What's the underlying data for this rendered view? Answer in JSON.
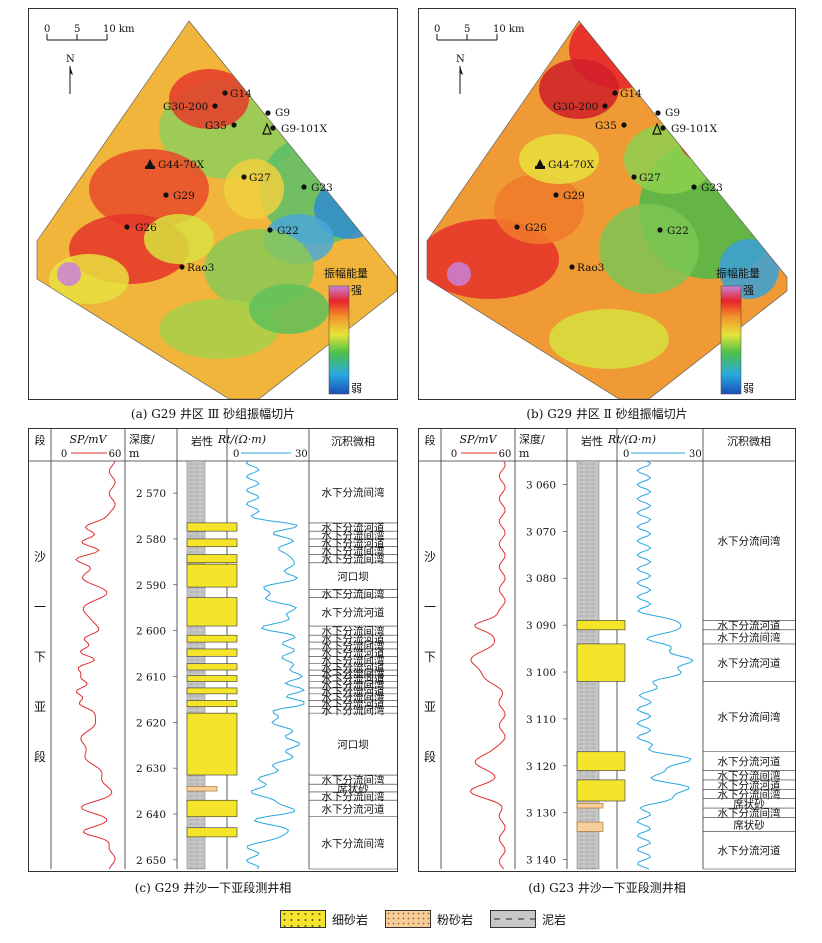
{
  "maps": [
    {
      "caption": "(a) G29 井区 Ⅲ 砂组振幅切片",
      "scale": {
        "zero": "0",
        "five": "5",
        "ten": "10 km"
      },
      "north": "N",
      "legend": {
        "title": "振幅能量",
        "strong": "强",
        "weak": "弱"
      },
      "wells": [
        "G14",
        "G30-200",
        "G9",
        "G35",
        "G9-101X",
        "G44-70X",
        "G27",
        "G23",
        "G29",
        "G26",
        "G22",
        "Rao3"
      ]
    },
    {
      "caption": "(b) G29 井区 Ⅱ 砂组振幅切片",
      "scale": {
        "zero": "0",
        "five": "5",
        "ten": "10 km"
      },
      "north": "N",
      "legend": {
        "title": "振幅能量",
        "strong": "强",
        "weak": "弱"
      },
      "wells": [
        "G14",
        "G30-200",
        "G9",
        "G35",
        "G9-101X",
        "G44-70X",
        "G27",
        "G23",
        "G29",
        "G26",
        "G22",
        "Rao3"
      ]
    }
  ],
  "logs": [
    {
      "caption": "(c) G29 井沙一下亚段测井相",
      "headers": {
        "seg": "段",
        "sp": "SP/mV",
        "sp_min": "0",
        "sp_max": "60",
        "depth": "深度/",
        "depth_unit": "m",
        "lith": "岩性",
        "rt": "Rt/(Ω·m)",
        "rt_min": "0",
        "rt_max": "30",
        "facies": "沉积微相"
      },
      "segment_chars": [
        "沙",
        "一",
        "下",
        "亚",
        "段"
      ],
      "depth_range": [
        2563,
        2652
      ],
      "depth_ticks": [
        "2 570",
        "2 580",
        "2 590",
        "2 600",
        "2 610",
        "2 620",
        "2 630",
        "2 640",
        "2 650"
      ],
      "facies": [
        {
          "label": "水下分流间湾",
          "top": 2563,
          "bottom": 2576.5
        },
        {
          "label": "水下分流河道",
          "top": 2576.5,
          "bottom": 2578.3
        },
        {
          "label": "水下分流间湾",
          "top": 2578.3,
          "bottom": 2580
        },
        {
          "label": "水下分流河道",
          "top": 2580,
          "bottom": 2581.7
        },
        {
          "label": "水下分流间湾",
          "top": 2581.7,
          "bottom": 2583.4
        },
        {
          "label": "水下分流间湾",
          "top": 2583.4,
          "bottom": 2585.2
        },
        {
          "label": "河口坝",
          "top": 2585.2,
          "bottom": 2591
        },
        {
          "label": "水下分流间湾",
          "top": 2591,
          "bottom": 2592.8
        },
        {
          "label": "水下分流河道",
          "top": 2592.8,
          "bottom": 2599
        },
        {
          "label": "水下分流间湾",
          "top": 2599,
          "bottom": 2601
        },
        {
          "label": "水下分流河道",
          "top": 2601,
          "bottom": 2602.5
        },
        {
          "label": "水下分流间湾",
          "top": 2602.5,
          "bottom": 2604
        },
        {
          "label": "水下分流河道",
          "top": 2604,
          "bottom": 2605.6
        },
        {
          "label": "水下分流间湾",
          "top": 2605.6,
          "bottom": 2607.2
        },
        {
          "label": "水下分流河道",
          "top": 2607.2,
          "bottom": 2608.6
        },
        {
          "label": "水下分流间湾",
          "top": 2608.6,
          "bottom": 2609.8
        },
        {
          "label": "水下分流河道",
          "top": 2609.8,
          "bottom": 2611.1
        },
        {
          "label": "水下分流间湾",
          "top": 2611.1,
          "bottom": 2612.5
        },
        {
          "label": "水下分流河道",
          "top": 2612.5,
          "bottom": 2613.8
        },
        {
          "label": "水下分流间湾",
          "top": 2613.8,
          "bottom": 2615.2
        },
        {
          "label": "水下分流河道",
          "top": 2615.2,
          "bottom": 2616.6
        },
        {
          "label": "水下分流间湾",
          "top": 2616.6,
          "bottom": 2618
        },
        {
          "label": "河口坝",
          "top": 2618,
          "bottom": 2631.5
        },
        {
          "label": "水下分流间湾",
          "top": 2631.5,
          "bottom": 2633.5
        },
        {
          "label": "席状砂",
          "top": 2633.5,
          "bottom": 2635.2
        },
        {
          "label": "水下分流间湾",
          "top": 2635.2,
          "bottom": 2637
        },
        {
          "label": "水下分流河道",
          "top": 2637,
          "bottom": 2640.6
        },
        {
          "label": "水下分流间湾",
          "top": 2640.6,
          "bottom": 2652
        }
      ]
    },
    {
      "caption": "(d) G23 井沙一下亚段测井相",
      "headers": {
        "seg": "段",
        "sp": "SP/mV",
        "sp_min": "0",
        "sp_max": "60",
        "depth": "深度/",
        "depth_unit": "m",
        "lith": "岩性",
        "rt": "Rt/(Ω·m)",
        "rt_min": "0",
        "rt_max": "30",
        "facies": "沉积微相"
      },
      "segment_chars": [
        "沙",
        "一",
        "下",
        "亚",
        "段"
      ],
      "depth_range": [
        3055,
        3142
      ],
      "depth_ticks": [
        "3 060",
        "3 070",
        "3 080",
        "3 090",
        "3 100",
        "3 110",
        "3 120",
        "3 130",
        "3 140"
      ],
      "facies": [
        {
          "label": "水下分流间湾",
          "top": 3055,
          "bottom": 3089
        },
        {
          "label": "水下分流河道",
          "top": 3089,
          "bottom": 3091
        },
        {
          "label": "水下分流间湾",
          "top": 3091,
          "bottom": 3094
        },
        {
          "label": "水下分流河道",
          "top": 3094,
          "bottom": 3102
        },
        {
          "label": "水下分流间湾",
          "top": 3102,
          "bottom": 3117
        },
        {
          "label": "水下分流河道",
          "top": 3117,
          "bottom": 3121
        },
        {
          "label": "水下分流间湾",
          "top": 3121,
          "bottom": 3123
        },
        {
          "label": "水下分流河道",
          "top": 3123,
          "bottom": 3125
        },
        {
          "label": "水下分流间湾",
          "top": 3125,
          "bottom": 3127
        },
        {
          "label": "席状砂",
          "top": 3127,
          "bottom": 3129
        },
        {
          "label": "水下分流间湾",
          "top": 3129,
          "bottom": 3131
        },
        {
          "label": "席状砂",
          "top": 3131,
          "bottom": 3134
        },
        {
          "label": "水下分流河道",
          "top": 3134,
          "bottom": 3142
        }
      ]
    }
  ],
  "legend": {
    "fine_sand": "细砂岩",
    "silt": "粉砂岩",
    "mud": "泥岩"
  }
}
